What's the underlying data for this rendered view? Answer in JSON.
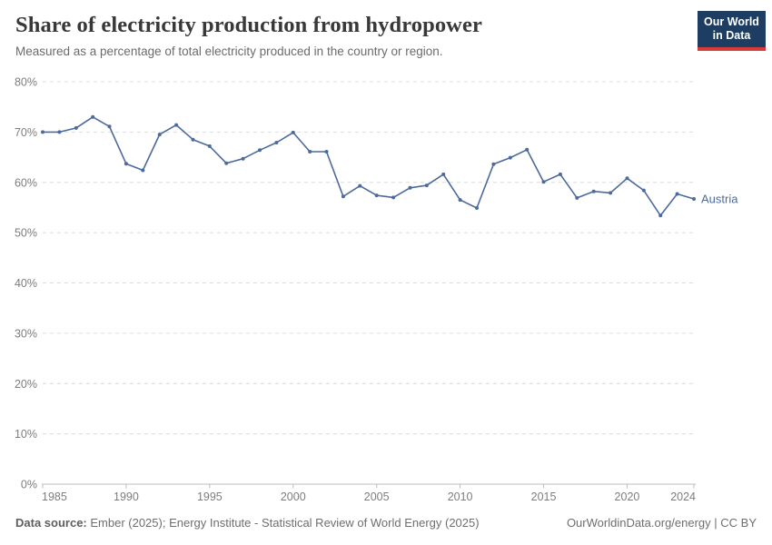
{
  "header": {
    "title": "Share of electricity production from hydropower",
    "subtitle": "Measured as a percentage of total electricity produced in the country or region.",
    "logo": {
      "line1": "Our World",
      "line2": "in Data"
    }
  },
  "chart_data": {
    "type": "line",
    "title": "Share of electricity production from hydropower",
    "xlabel": "",
    "ylabel": "",
    "xlim": [
      1985,
      2024
    ],
    "ylim": [
      0,
      80
    ],
    "x_ticks": [
      1985,
      1990,
      1995,
      2000,
      2005,
      2010,
      2015,
      2020,
      2024
    ],
    "y_ticks": [
      0,
      10,
      20,
      30,
      40,
      50,
      60,
      70,
      80
    ],
    "y_tick_suffix": "%",
    "grid": "horizontal-dashed",
    "legend": "line-end-label",
    "series": [
      {
        "name": "Austria",
        "color": "#4c6a9c",
        "x": [
          1985,
          1986,
          1987,
          1988,
          1989,
          1990,
          1991,
          1992,
          1993,
          1994,
          1995,
          1996,
          1997,
          1998,
          1999,
          2000,
          2001,
          2002,
          2003,
          2004,
          2005,
          2006,
          2007,
          2008,
          2009,
          2010,
          2011,
          2012,
          2013,
          2014,
          2015,
          2016,
          2017,
          2018,
          2019,
          2020,
          2021,
          2022,
          2023,
          2024
        ],
        "values": [
          70.0,
          70.0,
          70.8,
          73.0,
          71.1,
          63.7,
          62.4,
          69.5,
          71.4,
          68.5,
          67.2,
          63.8,
          64.7,
          66.4,
          67.9,
          69.9,
          66.1,
          66.1,
          57.2,
          59.3,
          57.4,
          57.0,
          58.9,
          59.4,
          61.6,
          56.5,
          54.9,
          63.6,
          64.9,
          66.5,
          60.1,
          61.6,
          56.9,
          58.2,
          57.9,
          60.8,
          58.4,
          53.4,
          57.7,
          56.7
        ]
      }
    ]
  },
  "footer": {
    "source_label": "Data source:",
    "source_text": " Ember (2025); Energy Institute - Statistical Review of World Energy (2025)",
    "right_text": "OurWorldinData.org/energy | CC BY"
  },
  "colors": {
    "line": "#4c6a9c",
    "grid": "#dcdcdc",
    "axis": "#bdbdbd",
    "tick_label": "#7d7d7d"
  }
}
